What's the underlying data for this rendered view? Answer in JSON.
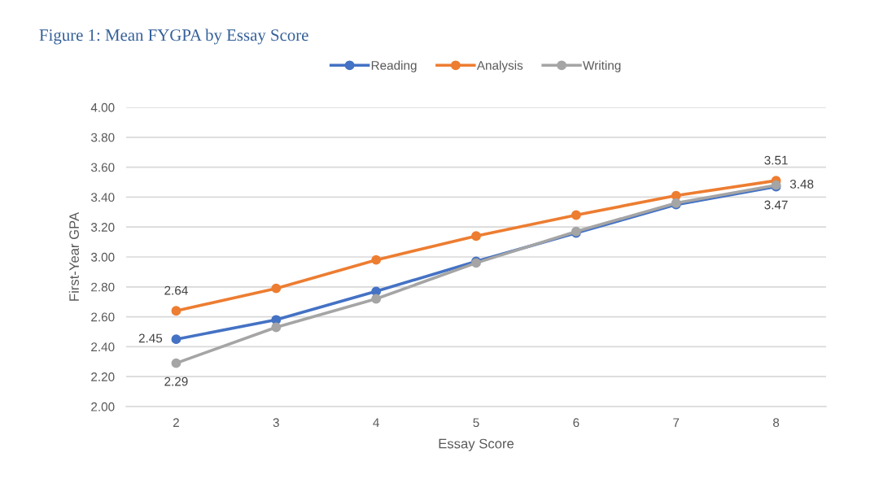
{
  "chart_data": {
    "type": "line",
    "title": "Figure 1: Mean FYGPA by Essay Score",
    "xlabel": "Essay Score",
    "ylabel": "First-Year GPA",
    "categories": [
      "2",
      "3",
      "4",
      "5",
      "6",
      "7",
      "8"
    ],
    "series": [
      {
        "name": "Reading",
        "color": "#4472c4",
        "values": [
          2.45,
          2.58,
          2.77,
          2.97,
          3.16,
          3.35,
          3.47
        ],
        "value_labels": [
          "2.45",
          null,
          null,
          null,
          null,
          null,
          "3.47"
        ]
      },
      {
        "name": "Analysis",
        "color": "#ed7d31",
        "values": [
          2.64,
          2.79,
          2.98,
          3.14,
          3.28,
          3.41,
          3.51
        ],
        "value_labels": [
          "2.64",
          null,
          null,
          null,
          null,
          null,
          "3.51"
        ]
      },
      {
        "name": "Writing",
        "color": "#a5a5a5",
        "values": [
          2.29,
          2.53,
          2.72,
          2.96,
          3.17,
          3.36,
          3.48
        ],
        "value_labels": [
          "2.29",
          null,
          null,
          null,
          null,
          null,
          "3.48"
        ]
      }
    ],
    "ylim": [
      2.0,
      4.0
    ],
    "yticks": [
      {
        "value": 2.0,
        "label": "2.00"
      },
      {
        "value": 2.2,
        "label": "2.20"
      },
      {
        "value": 2.4,
        "label": "2.40"
      },
      {
        "value": 2.6,
        "label": "2.60"
      },
      {
        "value": 2.8,
        "label": "2.80"
      },
      {
        "value": 3.0,
        "label": "3.00"
      },
      {
        "value": 3.2,
        "label": "3.20"
      },
      {
        "value": 3.4,
        "label": "3.40"
      },
      {
        "value": 3.6,
        "label": "3.60"
      },
      {
        "value": 3.8,
        "label": "3.80"
      },
      {
        "value": 4.0,
        "label": "4.00"
      }
    ],
    "grid": "y",
    "legend": "top",
    "marker": "circle",
    "line_style": "solid"
  }
}
